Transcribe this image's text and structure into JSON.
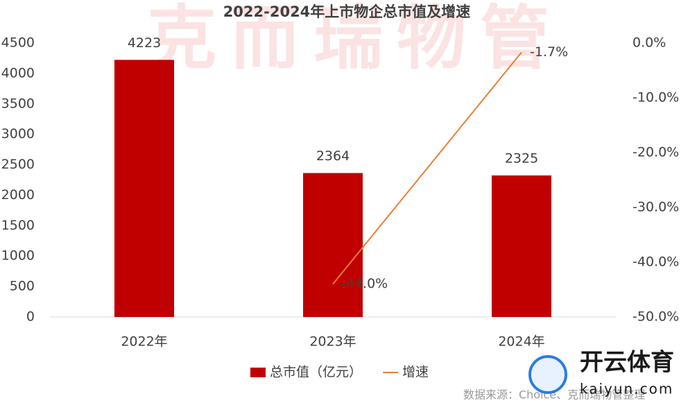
{
  "chart_data": {
    "type": "bar",
    "title": "2022-2024年上市物企总市值及增速",
    "categories": [
      "2022年",
      "2023年",
      "2024年"
    ],
    "series": [
      {
        "name": "总市值（亿元）",
        "type": "bar",
        "color": "#c00000",
        "values": [
          4223,
          2364,
          2325
        ]
      },
      {
        "name": "增速",
        "type": "line",
        "color": "#ed7d31",
        "axis": "y2",
        "values": [
          null,
          -44.0,
          -1.7
        ],
        "value_labels": [
          null,
          "-44.0%",
          "-1.7%"
        ]
      }
    ],
    "ylim": [
      0,
      4500
    ],
    "yticks": [
      0,
      500,
      1000,
      1500,
      2000,
      2500,
      3000,
      3500,
      4000,
      4500
    ],
    "y2lim": [
      -50,
      0
    ],
    "y2ticks": [
      {
        "value": -50,
        "label": "-50.0%"
      },
      {
        "value": -40,
        "label": "-40.0%"
      },
      {
        "value": -30,
        "label": "-30.0%"
      },
      {
        "value": -20,
        "label": "-20.0%"
      },
      {
        "value": -10,
        "label": "-10.0%"
      },
      {
        "value": 0,
        "label": "0.0%"
      }
    ],
    "grid": false,
    "legend": "bottom",
    "watermark": "克而瑞物管",
    "source": "数据来源：Choice、克而瑞物管整理",
    "logo": {
      "name": "开云体育",
      "url": "kaiyun.com"
    }
  }
}
